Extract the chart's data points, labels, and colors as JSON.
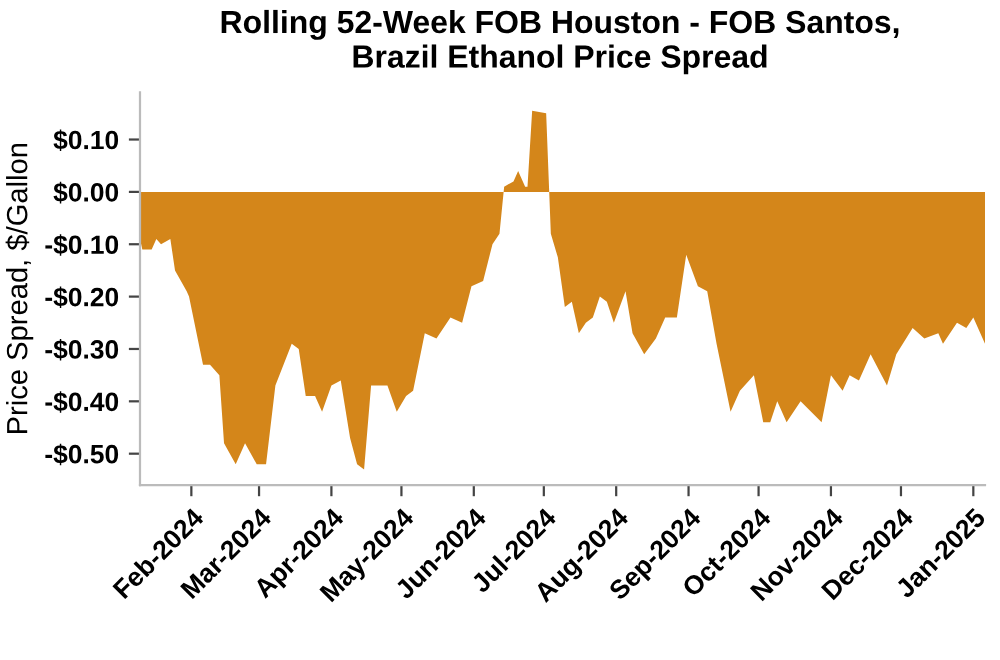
{
  "chart_data": {
    "type": "area",
    "title": "Rolling 52-Week FOB Houston - FOB Santos,\nBrazil Ethanol Price Spread",
    "ylabel": "Price Spread, $/Gallon",
    "color": "#d4861a",
    "grid": false,
    "legend": false,
    "x": [
      "2024-01-10",
      "2024-01-11",
      "2024-01-15",
      "2024-01-17",
      "2024-01-19",
      "2024-01-23",
      "2024-01-25",
      "2024-01-30",
      "2024-01-31",
      "2024-02-06",
      "2024-02-09",
      "2024-02-13",
      "2024-02-15",
      "2024-02-20",
      "2024-02-24",
      "2024-02-29",
      "2024-03-04",
      "2024-03-08",
      "2024-03-15",
      "2024-03-18",
      "2024-03-21",
      "2024-03-25",
      "2024-03-28",
      "2024-04-01",
      "2024-04-05",
      "2024-04-09",
      "2024-04-12",
      "2024-04-15",
      "2024-04-18",
      "2024-04-25",
      "2024-04-29",
      "2024-05-03",
      "2024-05-06",
      "2024-05-11",
      "2024-05-16",
      "2024-05-22",
      "2024-05-27",
      "2024-05-31",
      "2024-06-05",
      "2024-06-09",
      "2024-06-12",
      "2024-06-14",
      "2024-06-18",
      "2024-06-20",
      "2024-06-23",
      "2024-06-24",
      "2024-06-26",
      "2024-07-02",
      "2024-07-04",
      "2024-07-07",
      "2024-07-10",
      "2024-07-13",
      "2024-07-16",
      "2024-07-19",
      "2024-07-22",
      "2024-07-25",
      "2024-07-28",
      "2024-07-31",
      "2024-08-05",
      "2024-08-08",
      "2024-08-13",
      "2024-08-18",
      "2024-08-22",
      "2024-08-27",
      "2024-08-31",
      "2024-09-05",
      "2024-09-09",
      "2024-09-13",
      "2024-09-19",
      "2024-09-23",
      "2024-09-29",
      "2024-10-03",
      "2024-10-06",
      "2024-10-09",
      "2024-10-13",
      "2024-10-19",
      "2024-10-28",
      "2024-11-01",
      "2024-11-06",
      "2024-11-09",
      "2024-11-13",
      "2024-11-18",
      "2024-11-25",
      "2024-11-29",
      "2024-12-06",
      "2024-12-11",
      "2024-12-17",
      "2024-12-19",
      "2024-12-25",
      "2024-12-29",
      "2025-01-01",
      "2025-01-06"
    ],
    "values": [
      -0.09,
      -0.11,
      -0.11,
      -0.09,
      -0.1,
      -0.09,
      -0.15,
      -0.19,
      -0.2,
      -0.33,
      -0.33,
      -0.35,
      -0.48,
      -0.52,
      -0.48,
      -0.52,
      -0.52,
      -0.37,
      -0.29,
      -0.3,
      -0.39,
      -0.39,
      -0.42,
      -0.37,
      -0.36,
      -0.47,
      -0.52,
      -0.53,
      -0.37,
      -0.37,
      -0.42,
      -0.39,
      -0.38,
      -0.27,
      -0.28,
      -0.24,
      -0.25,
      -0.18,
      -0.17,
      -0.1,
      -0.08,
      0.01,
      0.02,
      0.04,
      0.01,
      0.01,
      0.155,
      0.15,
      -0.08,
      -0.125,
      -0.22,
      -0.21,
      -0.27,
      -0.25,
      -0.24,
      -0.2,
      -0.21,
      -0.25,
      -0.19,
      -0.27,
      -0.31,
      -0.28,
      -0.24,
      -0.24,
      -0.12,
      -0.18,
      -0.19,
      -0.29,
      -0.42,
      -0.38,
      -0.35,
      -0.44,
      -0.44,
      -0.4,
      -0.44,
      -0.4,
      -0.44,
      -0.35,
      -0.38,
      -0.35,
      -0.36,
      -0.31,
      -0.37,
      -0.31,
      -0.26,
      -0.28,
      -0.27,
      -0.29,
      -0.25,
      -0.26,
      -0.24,
      -0.29
    ],
    "xlim": [
      "2024-01-10",
      "2025-01-06"
    ],
    "xticks": [
      {
        "value": "2024-02-01",
        "label": "Feb-2024"
      },
      {
        "value": "2024-03-01",
        "label": "Mar-2024"
      },
      {
        "value": "2024-04-01",
        "label": "Apr-2024"
      },
      {
        "value": "2024-05-01",
        "label": "May-2024"
      },
      {
        "value": "2024-06-01",
        "label": "Jun-2024"
      },
      {
        "value": "2024-07-01",
        "label": "Jul-2024"
      },
      {
        "value": "2024-08-01",
        "label": "Aug-2024"
      },
      {
        "value": "2024-09-01",
        "label": "Sep-2024"
      },
      {
        "value": "2024-10-01",
        "label": "Oct-2024"
      },
      {
        "value": "2024-11-01",
        "label": "Nov-2024"
      },
      {
        "value": "2024-12-01",
        "label": "Dec-2024"
      },
      {
        "value": "2025-01-01",
        "label": "Jan-2025"
      }
    ],
    "ylim": [
      -0.56,
      0.19
    ],
    "yticks": [
      {
        "value": 0.1,
        "label": "$0.10"
      },
      {
        "value": 0,
        "label": "$0.00"
      },
      {
        "value": -0.1,
        "label": "-$0.10"
      },
      {
        "value": -0.2,
        "label": "-$0.20"
      },
      {
        "value": -0.3,
        "label": "-$0.30"
      },
      {
        "value": -0.4,
        "label": "-$0.40"
      },
      {
        "value": -0.5,
        "label": "-$0.50"
      }
    ]
  }
}
